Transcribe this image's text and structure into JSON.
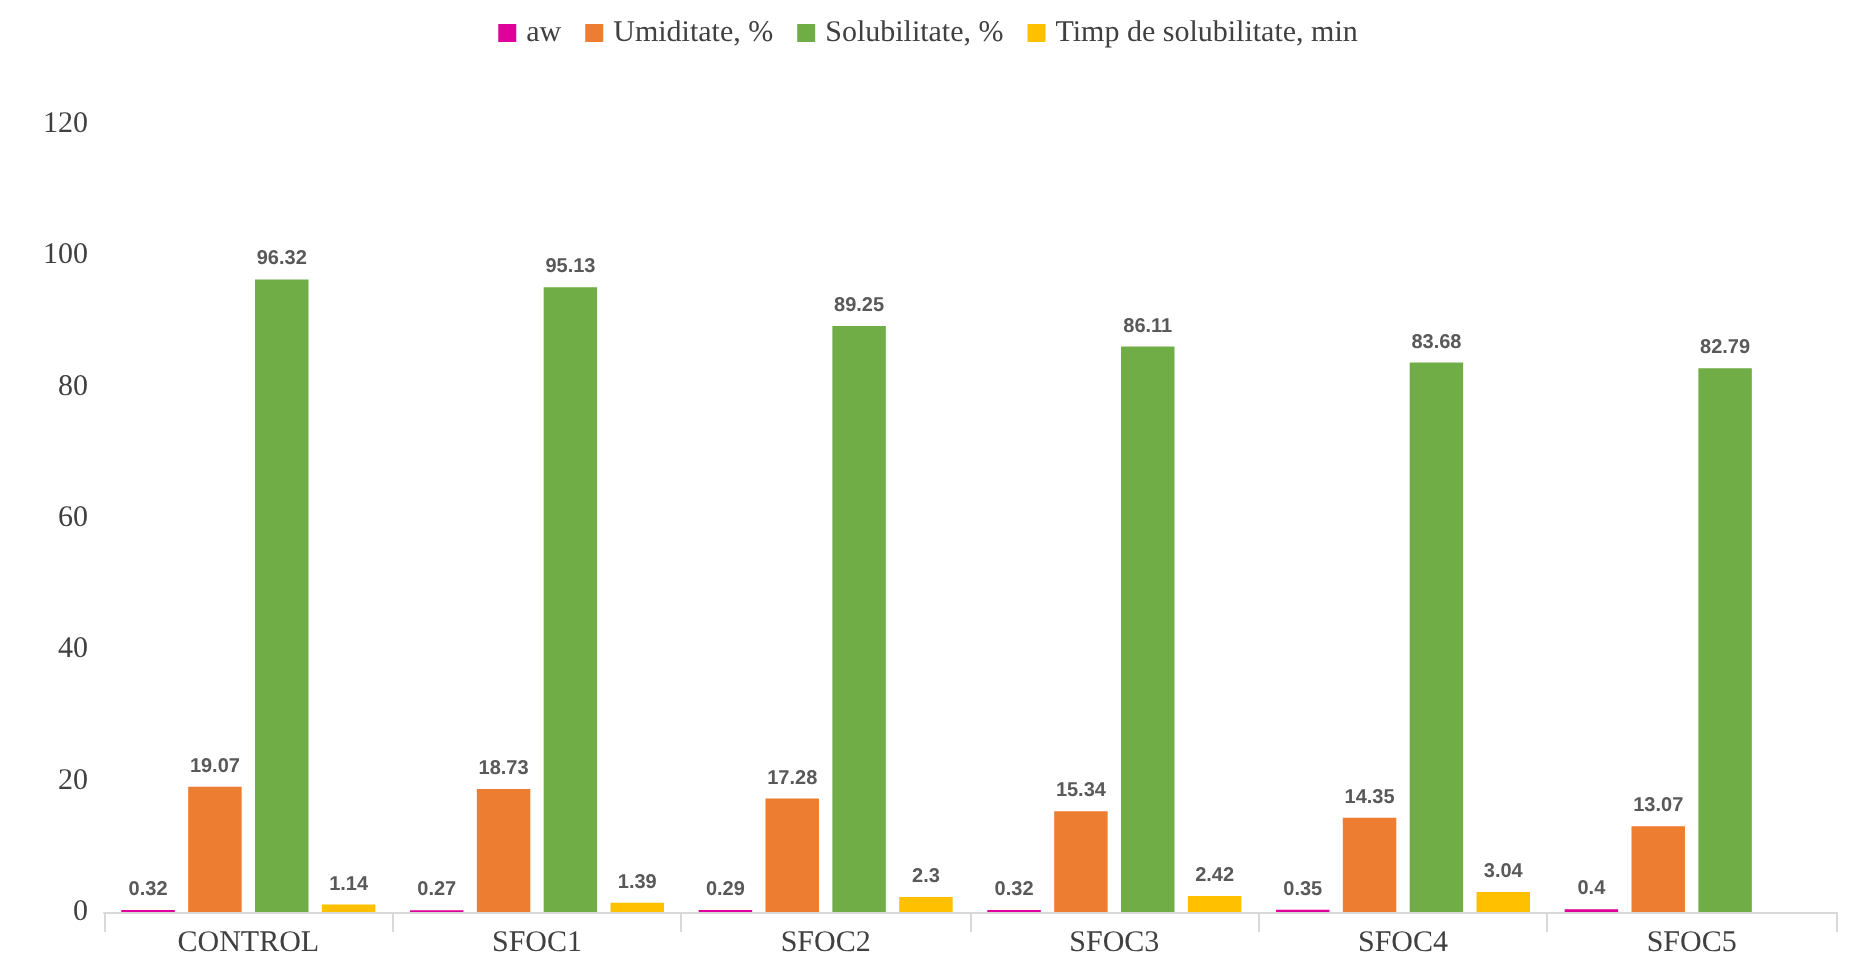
{
  "chart_data": {
    "type": "bar",
    "categories": [
      "CONTROL",
      "SFOC1",
      "SFOC2",
      "SFOC3",
      "SFOC4",
      "SFOC5"
    ],
    "series": [
      {
        "name": "aw",
        "color": "#e0009a",
        "values": [
          0.32,
          0.27,
          0.29,
          0.32,
          0.35,
          0.4
        ]
      },
      {
        "name": "Umiditate, %",
        "color": "#ed7d31",
        "values": [
          19.07,
          18.73,
          17.28,
          15.34,
          14.35,
          13.07
        ]
      },
      {
        "name": "Solubilitate, %",
        "color": "#70ad47",
        "values": [
          96.32,
          95.13,
          89.25,
          86.11,
          83.68,
          82.79
        ]
      },
      {
        "name": "Timp de solubilitate, min",
        "color": "#ffc000",
        "values": [
          1.14,
          1.39,
          2.3,
          2.42,
          3.04,
          null
        ]
      }
    ],
    "ylim": [
      0,
      120
    ],
    "yticks": [
      0,
      20,
      40,
      60,
      80,
      100,
      120
    ],
    "grid": false,
    "legend": "top",
    "data_labels": true
  }
}
